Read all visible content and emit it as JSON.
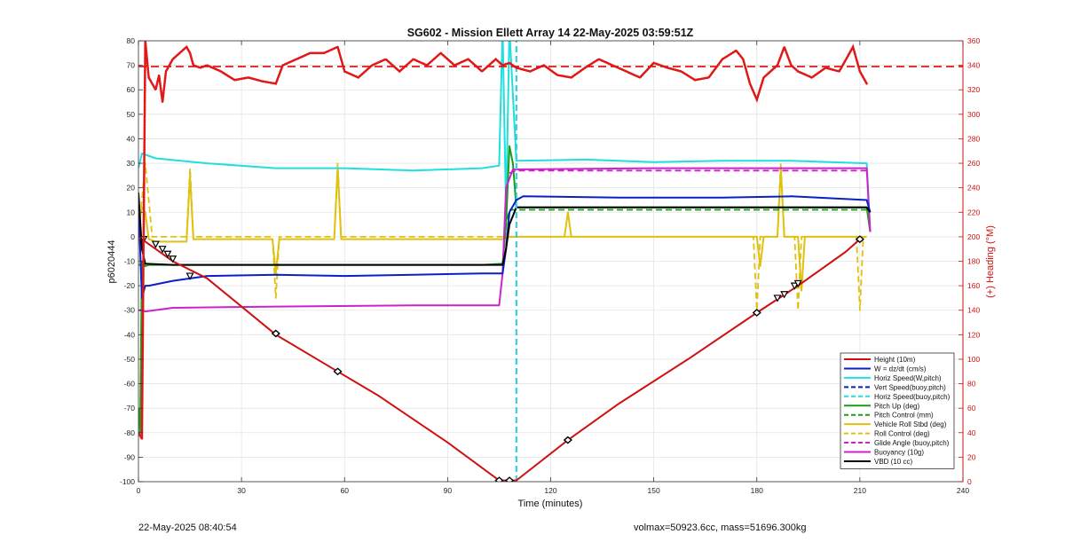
{
  "chart_data": {
    "type": "line",
    "title": "SG602 - Mission Ellett Array 14 22-May-2025 03:59:51Z",
    "xlabel": "Time (minutes)",
    "ylabel": "p6020444",
    "y2label": "(+) Heading (°M)",
    "xlim": [
      0,
      240
    ],
    "ylim": [
      -100,
      80
    ],
    "y2lim": [
      0,
      360
    ],
    "xticks": [
      0,
      30,
      60,
      90,
      120,
      150,
      180,
      210,
      240
    ],
    "yticks": [
      -100,
      -90,
      -80,
      -70,
      -60,
      -50,
      -40,
      -30,
      -20,
      -10,
      0,
      10,
      20,
      30,
      40,
      50,
      60,
      70,
      80
    ],
    "y2ticks": [
      0,
      20,
      40,
      60,
      80,
      100,
      120,
      140,
      160,
      180,
      200,
      220,
      240,
      260,
      280,
      300,
      320,
      340,
      360
    ],
    "grid": true,
    "legend_position": "bottom-right",
    "series": [
      {
        "name": "Height (10m)",
        "color": "#d01010",
        "style": "solid",
        "axis": "left",
        "x": [
          0,
          5,
          10,
          20,
          40,
          58,
          70,
          90,
          105,
          110,
          125,
          140,
          160,
          180,
          192,
          206,
          210
        ],
        "y": [
          0,
          -5,
          -10,
          -17,
          -40,
          -55,
          -65,
          -84,
          -99.5,
          -99.5,
          -83,
          -68,
          -50,
          -31,
          -20,
          -6,
          -1
        ],
        "markers": [
          {
            "x": 1.5,
            "y": -1,
            "kind": "triangle"
          },
          {
            "x": 5,
            "y": -3,
            "kind": "triangle"
          },
          {
            "x": 7,
            "y": -5,
            "kind": "triangle"
          },
          {
            "x": 8.5,
            "y": -7,
            "kind": "triangle"
          },
          {
            "x": 10,
            "y": -9,
            "kind": "triangle"
          },
          {
            "x": 15,
            "y": -16,
            "kind": "triangle"
          },
          {
            "x": 40,
            "y": -39.5,
            "kind": "diamond"
          },
          {
            "x": 58,
            "y": -55,
            "kind": "diamond"
          },
          {
            "x": 105,
            "y": -99.5,
            "kind": "diamond"
          },
          {
            "x": 108,
            "y": -99.5,
            "kind": "diamond"
          },
          {
            "x": 125,
            "y": -83,
            "kind": "diamond"
          },
          {
            "x": 180,
            "y": -31,
            "kind": "diamond"
          },
          {
            "x": 186,
            "y": -25,
            "kind": "triangle"
          },
          {
            "x": 188,
            "y": -23.5,
            "kind": "triangle"
          },
          {
            "x": 191,
            "y": -20,
            "kind": "triangle"
          },
          {
            "x": 192,
            "y": -19,
            "kind": "triangle"
          },
          {
            "x": 210,
            "y": -1,
            "kind": "diamond"
          }
        ]
      },
      {
        "name": "W = dz/dt (cm/s)",
        "color": "#0a1fc8",
        "style": "solid",
        "axis": "left",
        "x": [
          0,
          1,
          2,
          3,
          10,
          20,
          40,
          60,
          80,
          100,
          106,
          107,
          108,
          110,
          112,
          140,
          170,
          190,
          212,
          213
        ],
        "y": [
          15,
          -25,
          -20,
          -20,
          -18,
          -16,
          -15.5,
          -16,
          -15.5,
          -15,
          -15,
          -5,
          10,
          15,
          16.5,
          16,
          16,
          16.5,
          15,
          10
        ]
      },
      {
        "name": "Horiz Speed(W,pitch)",
        "color": "#22dede",
        "style": "solid",
        "axis": "left",
        "x": [
          0,
          1,
          5,
          20,
          40,
          60,
          80,
          100,
          105,
          106,
          107,
          108,
          110,
          130,
          150,
          170,
          190,
          212,
          213
        ],
        "y": [
          28,
          34,
          32,
          30,
          28,
          28,
          27,
          28,
          29,
          85,
          10,
          85,
          31,
          31.5,
          30.5,
          31,
          31,
          30,
          2
        ]
      },
      {
        "name": "Vert Speed(buoy,pitch)",
        "color": "#0a1fc8",
        "style": "dash",
        "axis": "left",
        "x": [
          110,
          110
        ],
        "y": [
          -100,
          80
        ]
      },
      {
        "name": "Horiz Speed(buoy,pitch)",
        "color": "#22dede",
        "style": "dash",
        "axis": "left",
        "x": [
          110,
          110
        ],
        "y": [
          -100,
          80
        ]
      },
      {
        "name": "Pitch Up (deg)",
        "color": "#1a9e1a",
        "style": "solid",
        "axis": "left",
        "x": [
          0,
          0.5,
          1,
          1.5,
          2,
          3,
          5,
          10,
          50,
          100,
          106,
          107,
          108,
          109,
          110,
          150,
          200,
          212,
          213
        ],
        "y": [
          -70,
          -80,
          -10,
          -11,
          -12,
          -11.5,
          -11.5,
          -11.5,
          -11.5,
          -11.5,
          -11,
          5,
          37,
          30,
          12,
          12,
          12,
          12,
          2
        ]
      },
      {
        "name": "Pitch Control (mm)",
        "color": "#1a9e1a",
        "style": "dash",
        "axis": "left",
        "x": [
          0,
          1,
          106,
          107,
          108,
          212
        ],
        "y": [
          -11.5,
          -11.5,
          -11.5,
          5,
          11,
          11
        ]
      },
      {
        "name": "Vehicle Roll Stbd (deg)",
        "color": "#e0c010",
        "style": "solid",
        "axis": "left",
        "x": [
          0,
          1,
          2,
          3,
          5,
          14,
          15,
          16,
          39,
          40,
          41,
          57,
          58,
          59,
          106,
          108,
          124,
          125,
          126,
          180,
          181,
          182,
          186,
          187,
          188,
          192,
          193,
          194,
          210,
          212
        ],
        "y": [
          5,
          12,
          10,
          -1,
          -2,
          -2,
          25,
          -1,
          -1,
          -15,
          -1,
          -1,
          28,
          -1,
          -1,
          0,
          0,
          10,
          0,
          0,
          -12,
          0,
          0,
          28,
          0,
          0,
          -22,
          0,
          0,
          0
        ]
      },
      {
        "name": "Roll Control (deg)",
        "color": "#e0c010",
        "style": "dash",
        "axis": "left",
        "x": [
          0,
          2,
          4,
          6,
          14,
          15,
          16,
          39,
          40,
          41,
          57,
          58,
          59,
          106,
          108,
          125,
          126,
          127,
          179,
          180,
          181,
          186,
          187,
          188,
          191,
          192,
          193,
          209,
          210,
          211,
          212
        ],
        "y": [
          0,
          30,
          0,
          0,
          0,
          28,
          0,
          0,
          -25,
          0,
          0,
          30,
          0,
          0,
          0,
          0,
          0,
          0,
          0,
          -30,
          0,
          0,
          30,
          0,
          0,
          -30,
          0,
          0,
          -30,
          0,
          0
        ]
      },
      {
        "name": "Glide Angle (buoy,pitch)",
        "color": "#cc22cc",
        "style": "dash",
        "axis": "left",
        "x": [
          108,
          110,
          212
        ],
        "y": [
          26,
          27,
          27
        ]
      },
      {
        "name": "Buoyancy (10g)",
        "color": "#cc22cc",
        "style": "solid",
        "axis": "left",
        "x": [
          0,
          1,
          2,
          10,
          40,
          80,
          105,
          106,
          107,
          109,
          150,
          212,
          213
        ],
        "y": [
          -30,
          -30,
          -30.5,
          -29,
          -28.5,
          -28,
          -28,
          -15,
          20,
          27.5,
          28,
          28,
          2
        ]
      },
      {
        "name": "VBD (10 cc)",
        "color": "#000000",
        "style": "solid",
        "axis": "left",
        "x": [
          0,
          1,
          2,
          10,
          50,
          100,
          106,
          107,
          108,
          110,
          150,
          212,
          213
        ],
        "y": [
          18,
          -5,
          -11,
          -11.5,
          -11.5,
          -11.5,
          -11.5,
          -5,
          5,
          12,
          12,
          12,
          10
        ]
      }
    ],
    "heading": {
      "name": "Heading",
      "color": "#e01818",
      "axis": "right",
      "target": 339,
      "x": [
        0,
        1,
        2,
        3,
        4,
        5,
        6,
        7,
        8,
        10,
        12,
        14,
        15,
        16,
        18,
        20,
        24,
        28,
        32,
        36,
        40,
        42,
        46,
        50,
        54,
        58,
        60,
        64,
        68,
        72,
        76,
        80,
        84,
        88,
        92,
        96,
        100,
        104,
        106,
        108,
        110,
        114,
        118,
        122,
        126,
        130,
        134,
        138,
        142,
        146,
        150,
        154,
        158,
        162,
        166,
        170,
        174,
        176,
        178,
        180,
        182,
        184,
        186,
        188,
        190,
        192,
        196,
        200,
        204,
        206,
        208,
        210,
        212
      ],
      "y": [
        40,
        35,
        360,
        330,
        325,
        320,
        332,
        310,
        335,
        345,
        350,
        355,
        350,
        340,
        338,
        340,
        335,
        328,
        330,
        327,
        325,
        340,
        345,
        350,
        350,
        355,
        335,
        330,
        340,
        345,
        335,
        345,
        340,
        350,
        340,
        345,
        335,
        345,
        340,
        342,
        338,
        335,
        340,
        332,
        330,
        338,
        345,
        340,
        335,
        330,
        342,
        338,
        335,
        328,
        330,
        345,
        352,
        345,
        325,
        312,
        330,
        335,
        340,
        355,
        340,
        335,
        330,
        338,
        335,
        345,
        355,
        335,
        325
      ]
    }
  },
  "footer": {
    "timestamp": "22-May-2025 08:40:54",
    "vol_mass": "volmax=50923.6cc, mass=51696.300kg"
  }
}
